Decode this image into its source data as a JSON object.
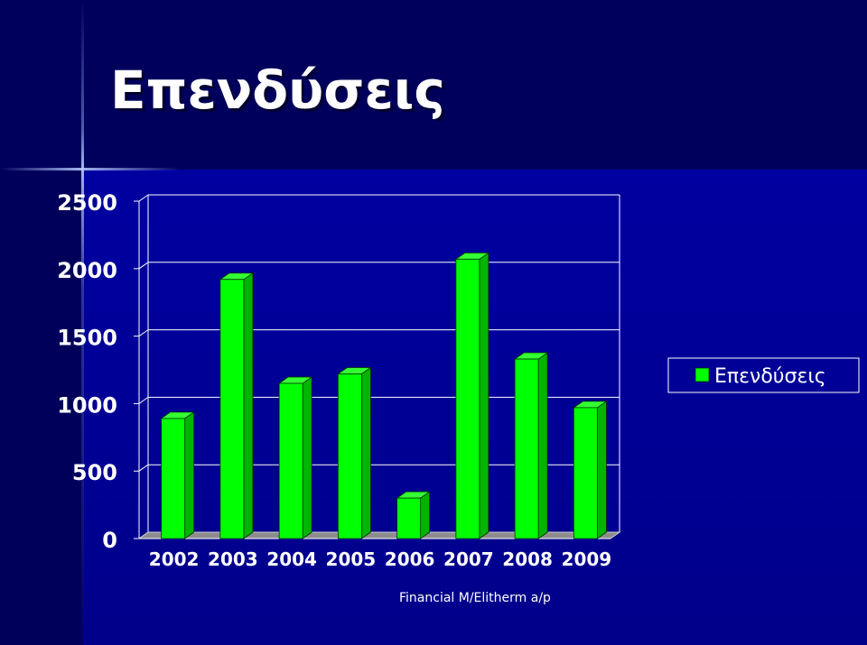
{
  "slide": {
    "title": "Επενδύσεις",
    "footer": "Financial M/Elitherm a/p"
  },
  "colors": {
    "background": "#000080",
    "bar": "#00ff00",
    "text": "#ffffff"
  },
  "chart_data": {
    "type": "bar",
    "categories": [
      "2002",
      "2003",
      "2004",
      "2005",
      "2006",
      "2007",
      "2008",
      "2009"
    ],
    "series": [
      {
        "name": "Επενδύσεις",
        "values": [
          890,
          1920,
          1150,
          1220,
          300,
          2070,
          1330,
          970
        ]
      }
    ],
    "yticks": [
      "0",
      "500",
      "1000",
      "1500",
      "2000",
      "2500"
    ],
    "ylim": [
      0,
      2500
    ],
    "grid": true,
    "legend": "right",
    "three_d": true
  }
}
